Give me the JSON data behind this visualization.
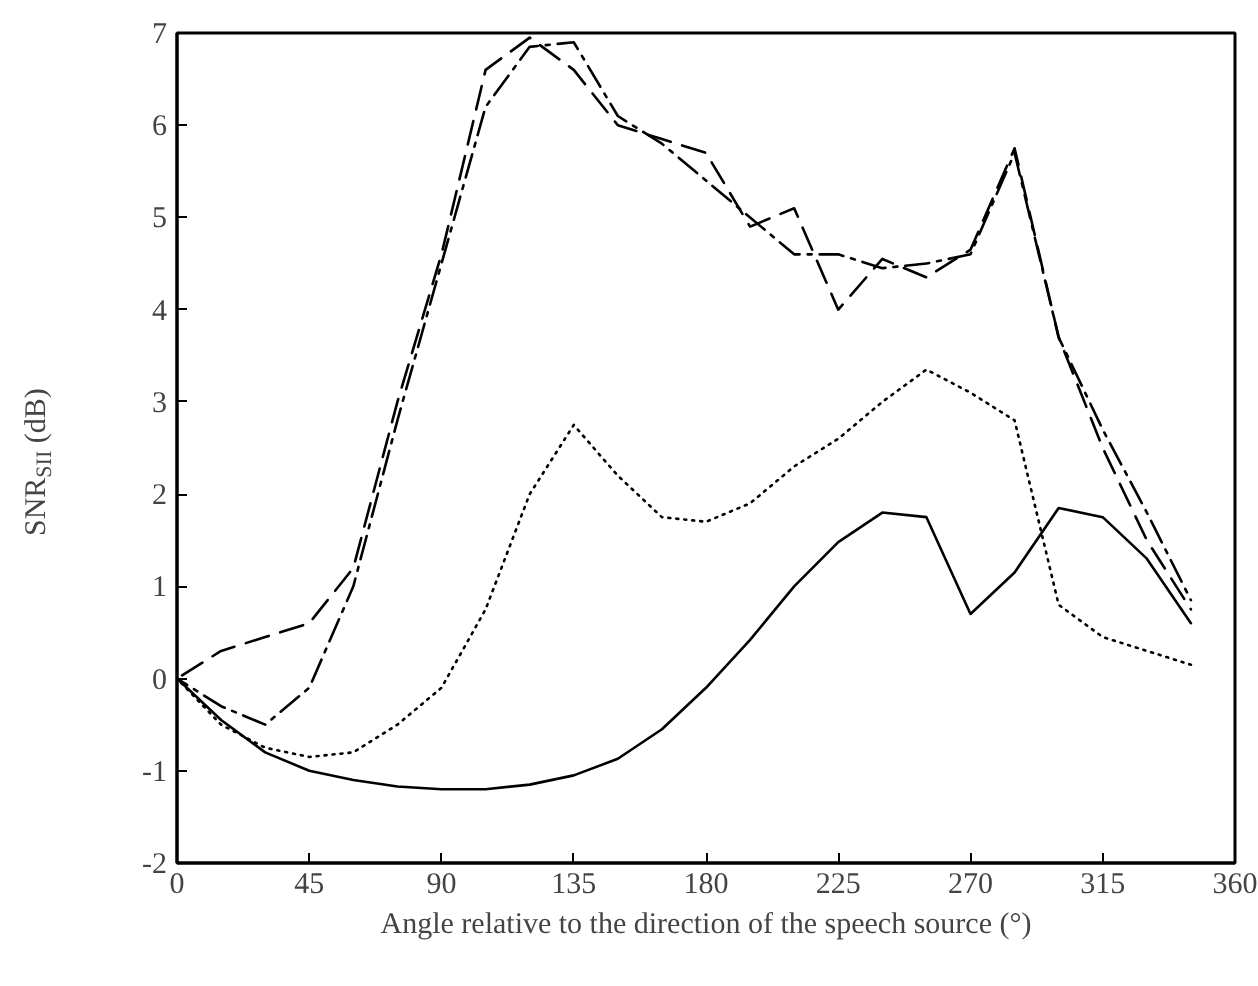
{
  "chart_data": {
    "type": "line",
    "xlabel": "Angle relative to the direction of the speech source (°)",
    "ylabel": "SNR$_{SII}$ (dB)",
    "x": [
      0,
      15,
      30,
      45,
      60,
      75,
      90,
      105,
      120,
      135,
      150,
      165,
      180,
      195,
      210,
      225,
      240,
      255,
      270,
      285,
      300,
      315,
      330,
      345
    ],
    "xlim": [
      0,
      360
    ],
    "xticks": [
      0,
      45,
      90,
      135,
      180,
      225,
      270,
      315,
      360
    ],
    "ylim": [
      -2,
      7
    ],
    "yticks": [
      -2,
      -1,
      0,
      1,
      2,
      3,
      4,
      5,
      6,
      7
    ],
    "grid": false,
    "series": [
      {
        "color": "#000000",
        "line_style": "solid",
        "values": [
          0,
          -0.45,
          -0.8,
          -1.0,
          -1.1,
          -1.17,
          -1.2,
          -1.2,
          -1.15,
          -1.05,
          -0.87,
          -0.55,
          -0.1,
          0.42,
          1.0,
          1.48,
          1.8,
          1.75,
          0.7,
          1.15,
          1.85,
          1.75,
          1.3,
          0.6
        ]
      },
      {
        "color": "#000000",
        "line_style": "dotted",
        "values": [
          0,
          -0.5,
          -0.75,
          -0.85,
          -0.8,
          -0.5,
          -0.1,
          0.75,
          2.0,
          2.75,
          2.2,
          1.75,
          1.7,
          1.9,
          2.3,
          2.6,
          3.0,
          3.35,
          3.1,
          2.8,
          0.8,
          0.45,
          0.3,
          0.15
        ]
      },
      {
        "color": "#000000",
        "line_style": "dashed",
        "values": [
          0,
          0.3,
          0.45,
          0.6,
          1.2,
          3.0,
          4.6,
          6.6,
          6.95,
          6.6,
          6.0,
          5.85,
          5.7,
          4.9,
          5.1,
          4.0,
          4.55,
          4.35,
          4.65,
          5.75,
          3.7,
          2.5,
          1.5,
          0.75
        ]
      },
      {
        "color": "#000000",
        "line_style": "dashdot",
        "values": [
          0,
          -0.3,
          -0.5,
          -0.1,
          1.0,
          2.8,
          4.5,
          6.2,
          6.85,
          6.9,
          6.1,
          5.8,
          5.4,
          5.0,
          4.6,
          4.6,
          4.45,
          4.5,
          4.6,
          5.7,
          3.7,
          2.7,
          1.8,
          0.85
        ]
      }
    ]
  }
}
